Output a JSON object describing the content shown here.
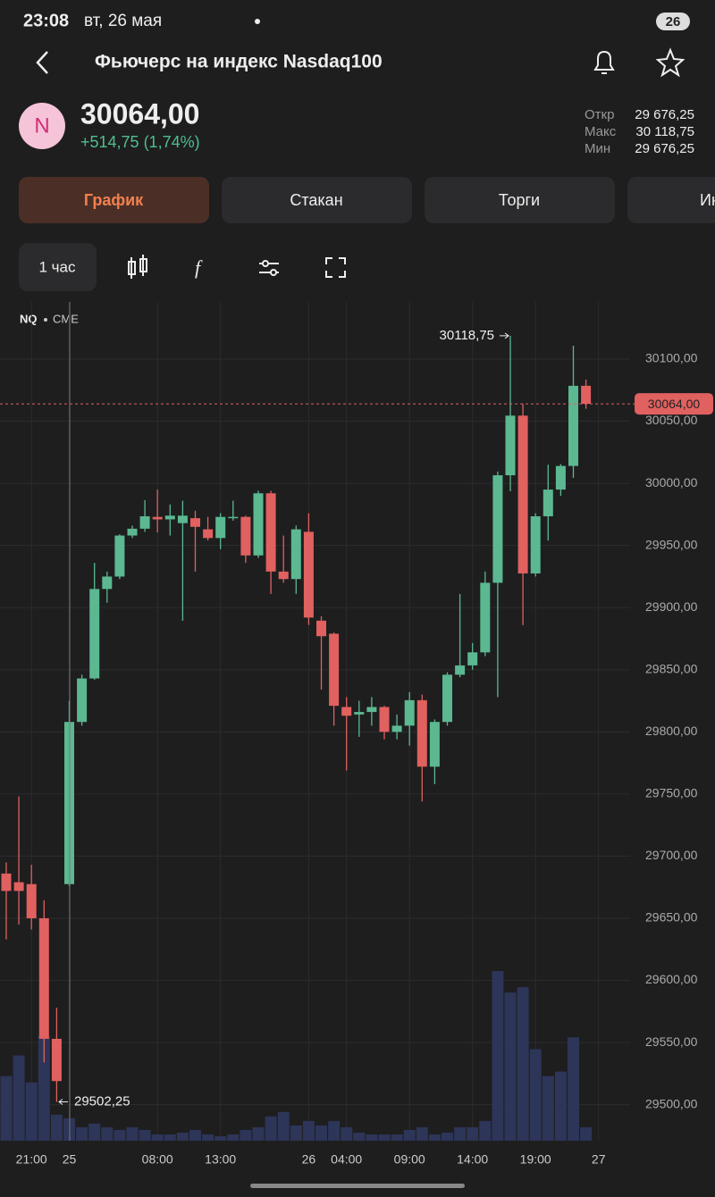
{
  "status_bar": {
    "time": "23:08",
    "date": "вт, 26 мая",
    "battery": "26"
  },
  "header": {
    "title": "Фьючерс на индекс Nasdaq100",
    "icon_letter": "N"
  },
  "quote": {
    "price": "30064,00",
    "change": "+514,75 (1,74%)",
    "stats": [
      {
        "label": "Откр",
        "value": "29 676,25"
      },
      {
        "label": "Макс",
        "value": "30 118,75"
      },
      {
        "label": "Мин",
        "value": "29 676,25"
      }
    ]
  },
  "tabs": [
    "График",
    "Стакан",
    "Торги",
    "Ин"
  ],
  "toolbar": {
    "interval": "1 час"
  },
  "chart_data": {
    "type": "candlestick",
    "ticker": "NQ",
    "exchange": "CME",
    "categories": [
      null,
      null,
      "21:00",
      null,
      null,
      "25",
      null,
      null,
      null,
      null,
      null,
      null,
      "08:00",
      null,
      null,
      null,
      null,
      "13:00",
      null,
      null,
      null,
      null,
      null,
      null,
      "26",
      null,
      null,
      "04:00",
      null,
      null,
      null,
      null,
      "09:00",
      null,
      null,
      null,
      null,
      "14:00",
      null,
      null,
      null,
      null,
      "19:00",
      null,
      null,
      null,
      null,
      "27"
    ],
    "open": [
      29686,
      29679,
      29677.5,
      29650,
      29553,
      29677.5,
      29808,
      29843,
      29915,
      29925,
      29958,
      29963.5,
      29973,
      29971,
      29968,
      29972,
      29963,
      29956,
      29972,
      29973,
      29942,
      29992,
      29929,
      29923,
      29961,
      29889.5,
      29879,
      29820,
      29814,
      29816,
      29820,
      29800,
      29805,
      29825.5,
      29772,
      29808,
      29846,
      29853.5,
      29864,
      29920,
      30006.5,
      30054.5,
      29927.5,
      29973.5,
      29995,
      30014,
      30078.5,
      null
    ],
    "high": [
      29695,
      29748,
      29693,
      29664.5,
      29578,
      29825,
      29846,
      29936,
      29929,
      29959,
      29966,
      29986.5,
      29995,
      29983,
      29986,
      29978,
      29973,
      29976,
      29986,
      29974,
      29994,
      29994,
      29958,
      29966,
      29976,
      29893,
      29880,
      29828,
      29825,
      29828,
      29821,
      29814,
      29832,
      29830,
      29810,
      29848,
      29911,
      29871.5,
      29929,
      30009.5,
      30118.75,
      30064,
      29976,
      30015,
      30015.5,
      30110.8,
      30083.5,
      null
    ],
    "low": [
      29633,
      29645,
      29641,
      29534,
      29502.25,
      29676,
      29805,
      29842,
      29904,
      29923,
      29956,
      29961,
      29960.5,
      29958,
      29889.5,
      29929,
      29954,
      29947,
      29970,
      29936,
      29940,
      29911,
      29920,
      29911,
      29886,
      29834,
      29805,
      29769,
      29796,
      29805,
      29794,
      29794,
      29789,
      29744,
      29758,
      29805,
      29844,
      29850,
      29861,
      29828,
      29993.6,
      29886,
      29925,
      29954,
      29990,
      30004.4,
      30060,
      null
    ],
    "close": [
      29672,
      29672,
      29650,
      29553,
      29519,
      29808,
      29843,
      29915,
      29925,
      29958,
      29963.5,
      29973.5,
      29971,
      29974,
      29974,
      29965,
      29956,
      29973,
      29973,
      29942,
      29992,
      29929,
      29923,
      29963,
      29892,
      29877,
      29821,
      29813,
      29816,
      29820,
      29800,
      29805,
      29825.5,
      29772,
      29808,
      29846,
      29853.5,
      29864,
      29920,
      30006.5,
      30054.5,
      29927.5,
      29973.5,
      29995,
      30014,
      30078.5,
      30064,
      null
    ],
    "volume": [
      72,
      95,
      65,
      117,
      29,
      25,
      15,
      19,
      15,
      12,
      15,
      12,
      7,
      7,
      9,
      12,
      7,
      5,
      7,
      12,
      15,
      27,
      32,
      17,
      22,
      17,
      22,
      15,
      9,
      7,
      7,
      7,
      12,
      15,
      7,
      9,
      15,
      15,
      22,
      189,
      165,
      171,
      102,
      72,
      77,
      115,
      15,
      null
    ],
    "up_color": "#5cb891",
    "down_color": "#e0615f",
    "volume_color": "#2d3558",
    "ylim": [
      29471,
      30146
    ],
    "yticks": [
      {
        "value": 29500,
        "label": "29500,00"
      },
      {
        "value": 29550,
        "label": "29550,00"
      },
      {
        "value": 29600,
        "label": "29600,00"
      },
      {
        "value": 29650,
        "label": "29650,00"
      },
      {
        "value": 29700,
        "label": "29700,00"
      },
      {
        "value": 29750,
        "label": "29750,00"
      },
      {
        "value": 29800,
        "label": "29800,00"
      },
      {
        "value": 29850,
        "label": "29850,00"
      },
      {
        "value": 29900,
        "label": "29900,00"
      },
      {
        "value": 29950,
        "label": "29950,00"
      },
      {
        "value": 30000,
        "label": "30000,00"
      },
      {
        "value": 30050,
        "label": "30050,00"
      },
      {
        "value": 30100,
        "label": "30100,00"
      }
    ],
    "grid": true,
    "last_price": {
      "value": 30064,
      "label": "30064,00"
    },
    "annotations": [
      {
        "value": 30118.75,
        "label": "30118,75"
      },
      {
        "value": 29502.25,
        "label": "29502,25"
      }
    ]
  }
}
